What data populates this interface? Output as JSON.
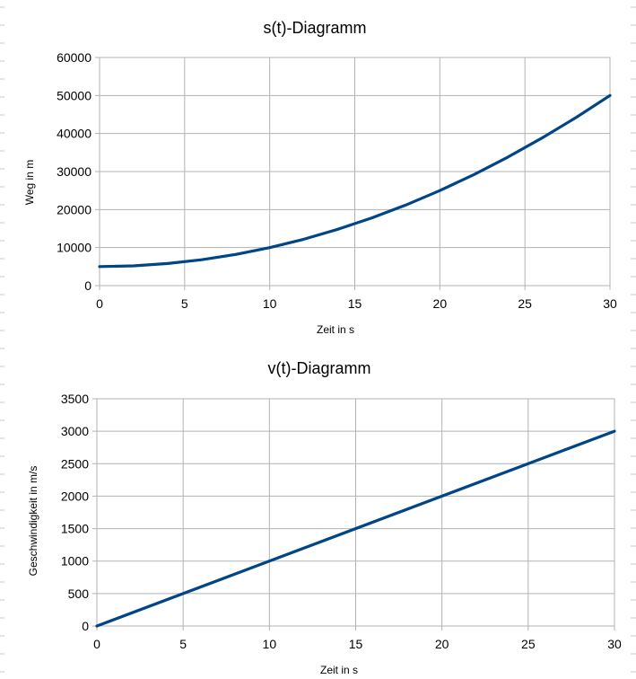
{
  "colors": {
    "series": "#004586",
    "grid": "#b3b3b3",
    "background": "#ffffff"
  },
  "chart_data": [
    {
      "type": "line",
      "title": "s(t)-Diagramm",
      "xlabel": "Zeit in s",
      "ylabel": "Weg in m",
      "xlim": [
        0,
        30
      ],
      "ylim": [
        0,
        60000
      ],
      "x_ticks": [
        "0",
        "5",
        "10",
        "15",
        "20",
        "25",
        "30"
      ],
      "y_ticks": [
        "0",
        "10000",
        "20000",
        "30000",
        "40000",
        "50000",
        "60000"
      ],
      "grid": true,
      "series": [
        {
          "x": [
            0,
            2,
            4,
            6,
            8,
            10,
            12,
            14,
            16,
            18,
            20,
            22,
            24,
            26,
            28,
            30
          ],
          "values": [
            5000,
            5200,
            5800,
            6800,
            8200,
            10000,
            12200,
            14800,
            17800,
            21200,
            25000,
            29200,
            33800,
            38800,
            44200,
            50000
          ]
        }
      ]
    },
    {
      "type": "line",
      "title": "v(t)-Diagramm",
      "xlabel": "Zeit in s",
      "ylabel": "Geschwindigkeit in m/s",
      "xlim": [
        0,
        30
      ],
      "ylim": [
        0,
        3500
      ],
      "x_ticks": [
        "0",
        "5",
        "10",
        "15",
        "20",
        "25",
        "30"
      ],
      "y_ticks": [
        "0",
        "500",
        "1000",
        "1500",
        "2000",
        "2500",
        "3000",
        "3500"
      ],
      "grid": true,
      "series": [
        {
          "x": [
            0,
            30
          ],
          "values": [
            0,
            3000
          ]
        }
      ]
    }
  ]
}
